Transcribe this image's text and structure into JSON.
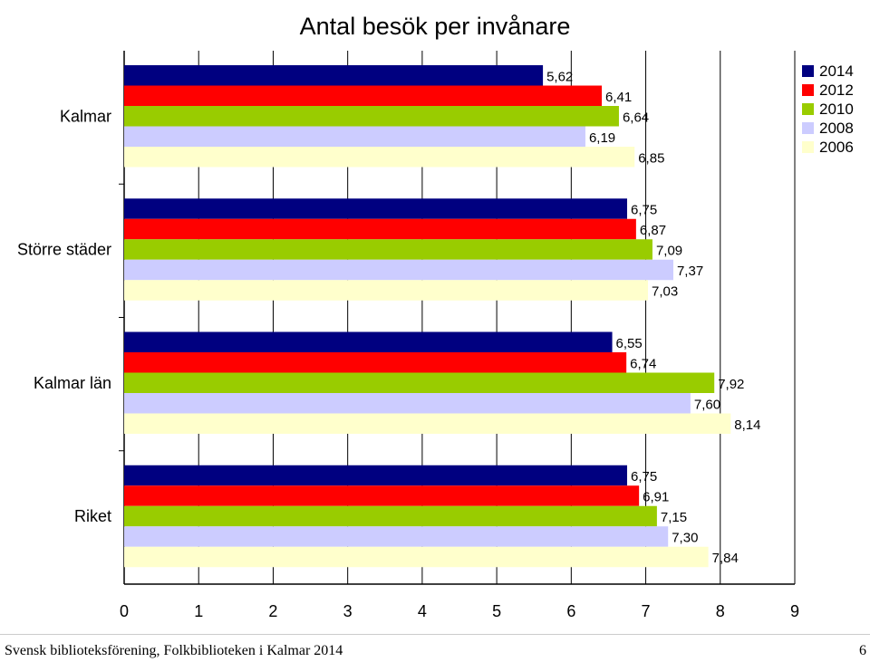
{
  "chart_data": {
    "type": "bar",
    "orientation": "horizontal",
    "title": "Antal besök per invånare",
    "categories": [
      "Kalmar",
      "Större städer",
      "Kalmar län",
      "Riket"
    ],
    "series": [
      {
        "name": "2014",
        "color": "#000080",
        "values": [
          5.62,
          6.75,
          6.55,
          6.75
        ],
        "labels": [
          "5,62",
          "6,75",
          "6,55",
          "6,75"
        ]
      },
      {
        "name": "2012",
        "color": "#ff0000",
        "values": [
          6.41,
          6.87,
          6.74,
          6.91
        ],
        "labels": [
          "6,41",
          "6,87",
          "6,74",
          "6,91"
        ]
      },
      {
        "name": "2010",
        "color": "#99cc00",
        "values": [
          6.64,
          7.09,
          7.92,
          7.15
        ],
        "labels": [
          "6,64",
          "7,09",
          "7,92",
          "7,15"
        ]
      },
      {
        "name": "2008",
        "color": "#ccccff",
        "values": [
          6.19,
          7.37,
          7.6,
          7.3
        ],
        "labels": [
          "6,19",
          "7,37",
          "7,60",
          "7,30"
        ]
      },
      {
        "name": "2006",
        "color": "#ffffcc",
        "values": [
          6.85,
          7.03,
          8.14,
          7.84
        ],
        "labels": [
          "6,85",
          "7,03",
          "8,14",
          "7,84"
        ]
      }
    ],
    "xlim": [
      0,
      9
    ],
    "xticks": [
      "0",
      "1",
      "2",
      "3",
      "4",
      "5",
      "6",
      "7",
      "8",
      "9"
    ],
    "grid": true,
    "legend_position": "top-right"
  },
  "footer": {
    "source": "Svensk biblioteksförening, Folkbiblioteken i Kalmar 2014",
    "page_number": "6"
  }
}
